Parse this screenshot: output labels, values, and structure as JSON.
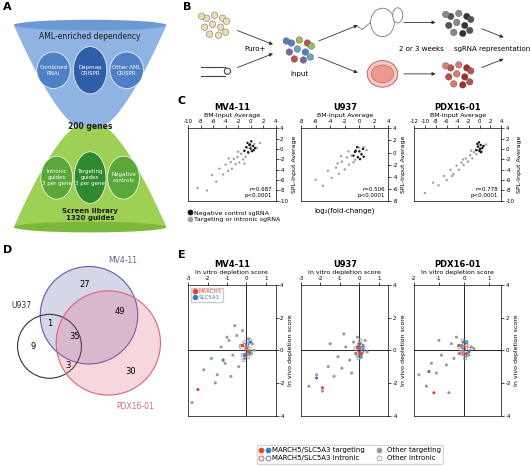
{
  "panel_labels": [
    "A",
    "B",
    "C",
    "D",
    "E"
  ],
  "diagram_a": {
    "header": "AML-enriched dependency",
    "sources": [
      "Combined\nRNAi",
      "Depmap\nCRISPR",
      "Other AML\nCRISPR"
    ],
    "gene_count": "200 genes",
    "guide_sets": [
      "Intronic\nguides\n3 per gene",
      "Targeting\nguides\n3 per gene",
      "Negative\ncontrols"
    ],
    "library": "Screen library\n1320 guides"
  },
  "diagram_b": {
    "selection": "Puro+",
    "input": "Input",
    "duration": "2 or 3 weeks",
    "readout": "sgRNA representation"
  },
  "panel_c_note": {
    "xlabel": "log₂(fold-change)"
  },
  "chart_data": [
    {
      "type": "scatter",
      "title": "MV4-11",
      "xlabel": "BM-Input Average",
      "ylabel": "SPL-Input Average",
      "xlim": [
        -10,
        4
      ],
      "ylim": [
        -10,
        4
      ],
      "xticks": [
        -10,
        -8,
        -6,
        -4,
        -2,
        0,
        2,
        4
      ],
      "yticks": [
        -10,
        -8,
        -6,
        -4,
        -2,
        0,
        2,
        4
      ],
      "annotation": "r=0.687\np<0.0001",
      "series": [
        {
          "name": "Negative control sgRNA",
          "color": "#111111",
          "marker": "circle",
          "x": [
            -1,
            -0.7,
            -0.4,
            -0.2,
            0,
            0.2,
            0.4,
            0.7,
            -0.5,
            0.1,
            0.5,
            -0.1
          ],
          "values": [
            -0.3,
            0.4,
            -0.6,
            0.8,
            0.1,
            -0.4,
            0.6,
            0.2,
            1.2,
            1.5,
            -0.2,
            0.9
          ]
        },
        {
          "name": "Targeting or intronic sgRNA",
          "color": "#a0a0a0",
          "marker": "circle",
          "x": [
            -8.5,
            -7,
            -6.2,
            -5.5,
            -5,
            -4.4,
            -4,
            -3.6,
            -3.2,
            -3,
            -2.7,
            -2.4,
            -2.1,
            -1.8,
            -1.5,
            -1.2,
            -1,
            -0.8,
            -0.5,
            -0.3,
            0,
            0.3,
            0.6,
            1,
            1.5,
            -2,
            -3.5,
            -1
          ],
          "values": [
            -7.5,
            -8,
            -5,
            -6.3,
            -3.8,
            -4.9,
            -3,
            -4.2,
            -2.5,
            -3.8,
            -1.9,
            -2.9,
            -1.5,
            -2.6,
            -0.9,
            -2,
            -0.4,
            -1.5,
            0.2,
            -0.8,
            0.5,
            -0.3,
            1,
            0.2,
            1.2,
            -0.5,
            -1.8,
            -2.8
          ]
        }
      ]
    },
    {
      "type": "scatter",
      "title": "U937",
      "xlabel": "BM-Input Average",
      "ylabel": "SPL-Input Average",
      "xlim": [
        -8,
        4
      ],
      "ylim": [
        -8,
        4
      ],
      "xticks": [
        -8,
        -6,
        -4,
        -2,
        0,
        2,
        4
      ],
      "yticks": [
        -8,
        -6,
        -4,
        -2,
        0,
        2,
        4
      ],
      "annotation": "r=0.506\np<0.0001",
      "series": [
        {
          "name": "Negative control sgRNA",
          "color": "#111111",
          "marker": "circle",
          "x": [
            -0.8,
            -0.5,
            -0.2,
            0,
            0.3,
            0.5,
            -0.3,
            0.1,
            0.6,
            -0.6
          ],
          "values": [
            -0.5,
            0.3,
            -0.8,
            0.2,
            -0.3,
            0.6,
            0.9,
            -1.1,
            -0.7,
            0.1
          ]
        },
        {
          "name": "Targeting or intronic sgRNA",
          "color": "#a0a0a0",
          "marker": "circle",
          "x": [
            -6,
            -5,
            -4.3,
            -3.8,
            -3.2,
            -2.8,
            -2.4,
            -2,
            -1.7,
            -1.4,
            -1.1,
            -0.8,
            -0.5,
            -0.2,
            0,
            0.3,
            0.6,
            1,
            -3,
            -1.5,
            -2.5,
            -0.6
          ],
          "values": [
            -4.5,
            -5.5,
            -3,
            -4.2,
            -2.5,
            -3.5,
            -1.5,
            -2.8,
            -0.8,
            -2,
            -0.5,
            -1.6,
            0.3,
            -0.7,
            0.8,
            -0.2,
            0.9,
            0.4,
            -1.8,
            0.2,
            -0.6,
            -1.2
          ]
        }
      ]
    },
    {
      "type": "scatter",
      "title": "PDX16-01",
      "xlabel": "BM-Input Average",
      "ylabel": "SPL-Input Average",
      "xlim": [
        -12,
        4
      ],
      "ylim": [
        -10,
        4
      ],
      "xticks": [
        -12,
        -10,
        -8,
        -6,
        -4,
        -2,
        0,
        2,
        4
      ],
      "yticks": [
        -10,
        -8,
        -6,
        -4,
        -2,
        0,
        2,
        4
      ],
      "annotation": "r=0.778\np<0.0001",
      "series": [
        {
          "name": "Negative control sgRNA",
          "color": "#111111",
          "marker": "circle",
          "x": [
            -0.6,
            -0.3,
            0,
            0.2,
            0.5,
            -0.1,
            0.3,
            0.7,
            -0.4,
            0.1
          ],
          "values": [
            -0.2,
            0.5,
            -0.4,
            0.8,
            0.2,
            1.3,
            -0.6,
            0.6,
            1,
            0
          ]
        },
        {
          "name": "Targeting or intronic sgRNA",
          "color": "#a0a0a0",
          "marker": "circle",
          "x": [
            -10,
            -8.5,
            -7.5,
            -6.5,
            -6,
            -5.3,
            -4.8,
            -4.2,
            -3.8,
            -3.3,
            -2.9,
            -2.5,
            -2.1,
            -1.7,
            -1.3,
            -1,
            -0.6,
            -0.3,
            0,
            0.4,
            0.8,
            1.2,
            -5,
            -3,
            -1.5
          ],
          "values": [
            -8.5,
            -6.5,
            -7,
            -5.2,
            -6,
            -4,
            -4.8,
            -3.2,
            -4,
            -2.6,
            -3.1,
            -1.8,
            -2.4,
            -1.2,
            -1.8,
            -0.6,
            -1,
            -0.2,
            0.3,
            -0.4,
            0.6,
            0.9,
            -5.2,
            -2,
            -0.3
          ]
        }
      ]
    },
    {
      "type": "scatter",
      "title": "MV4-11",
      "xlabel": "In vitro depletion score",
      "ylabel": "In vivo depletion score",
      "xlim": [
        -3,
        1.5
      ],
      "ylim": [
        -4,
        4
      ],
      "xticks": [
        -3,
        -2,
        -1,
        0,
        1
      ],
      "yticks": [
        -4,
        -2,
        0,
        2,
        4
      ],
      "axis_lines": {
        "x": 0,
        "y": 0
      },
      "legend": "upper left",
      "gene_key": [
        {
          "name": "MARCH5",
          "color": "#e2462f"
        },
        {
          "name": "SLC5A3",
          "color": "#3b78c2"
        }
      ],
      "series": [
        {
          "name": "MARCH5/SLC5A3 targeting",
          "marker": "circle",
          "colors": [
            "#e2462f",
            "#e2462f",
            "#e2462f",
            "#3b78c2",
            "#3b78c2",
            "#3b78c2"
          ],
          "x": [
            -2.5,
            -0.2,
            0.1,
            -1.2,
            -0.1,
            0.2
          ],
          "values": [
            -2.4,
            0.3,
            -0.1,
            -0.6,
            -0.3,
            0.5
          ]
        },
        {
          "name": "Other targeting",
          "color": "#9a9a9a",
          "marker": "circle",
          "x": [
            -2.2,
            -1.8,
            -1.5,
            -1.3,
            -1.1,
            -0.9,
            -0.7,
            -0.5,
            -0.4,
            -0.3,
            -0.2,
            -0.1,
            0,
            0.1,
            0.2,
            0.3,
            -1.6,
            -0.8,
            -0.6,
            0.4,
            -2.8,
            -1
          ],
          "values": [
            -1.2,
            -0.5,
            -1.5,
            0.2,
            -0.8,
            0.6,
            -0.3,
            0.9,
            -1,
            0.3,
            1.2,
            -0.5,
            0.1,
            0.7,
            -0.2,
            0.4,
            -2,
            -1.6,
            1.5,
            0,
            -3.2,
            0.8
          ]
        },
        {
          "name": "MARCH5/SLC5A3 intronic",
          "marker": "open_circle",
          "colors": [
            "#e2462f",
            "#e2462f",
            "#e2462f",
            "#3b78c2",
            "#3b78c2",
            "#3b78c2"
          ],
          "x": [
            0,
            0.1,
            -0.1,
            0.05,
            0.15,
            -0.05
          ],
          "values": [
            0.1,
            -0.2,
            0.3,
            0.4,
            -0.1,
            -0.3
          ]
        },
        {
          "name": "Other intronic",
          "color": "#9a9a9a",
          "marker": "open_circle",
          "x": [
            -0.3,
            -0.2,
            -0.1,
            0,
            0.05,
            0.1,
            0.15,
            0.2,
            -0.15,
            0.25
          ],
          "values": [
            0.2,
            -0.3,
            0.5,
            -0.1,
            0.3,
            -0.4,
            0.1,
            0.6,
            -0.6,
            -0.2
          ]
        }
      ]
    },
    {
      "type": "scatter",
      "title": "U937",
      "xlabel": "In vitro depletion score",
      "ylabel": "In vivo depletion score",
      "xlim": [
        -3,
        1.5
      ],
      "ylim": [
        -4,
        4
      ],
      "xticks": [
        -3,
        -2,
        -1,
        0,
        1
      ],
      "yticks": [
        -4,
        -2,
        0,
        2,
        4
      ],
      "axis_lines": {
        "x": 0,
        "y": 0
      },
      "series": [
        {
          "name": "MARCH5/SLC5A3 targeting",
          "marker": "circle",
          "colors": [
            "#e2462f",
            "#e2462f",
            "#e2462f",
            "#3b78c2",
            "#3b78c2",
            "#3b78c2"
          ],
          "x": [
            -1.9,
            -0.1,
            0.1,
            -2.2,
            0,
            0.2
          ],
          "values": [
            -2.3,
            0.2,
            -0.2,
            -1.7,
            0.4,
            0
          ]
        },
        {
          "name": "Other targeting",
          "color": "#9a9a9a",
          "marker": "circle",
          "x": [
            -2.6,
            -2.2,
            -1.9,
            -1.6,
            -1.3,
            -1.1,
            -0.9,
            -0.7,
            -0.5,
            -0.3,
            -0.2,
            -0.1,
            0,
            0.1,
            0.2,
            0.3,
            -1.5,
            -0.8,
            -0.4,
            0.4
          ],
          "values": [
            -2.2,
            -1.5,
            -2.5,
            -1,
            -1.6,
            -0.4,
            -1.1,
            0.2,
            -0.6,
            0.5,
            -0.2,
            0.8,
            0.1,
            -0.4,
            0.3,
            0.6,
            0.4,
            1,
            -1.4,
            -0.1
          ]
        },
        {
          "name": "MARCH5/SLC5A3 intronic",
          "marker": "open_circle",
          "colors": [
            "#e2462f",
            "#e2462f",
            "#e2462f",
            "#3b78c2",
            "#3b78c2",
            "#3b78c2"
          ],
          "x": [
            0,
            0.1,
            -0.1,
            0.05,
            -0.05,
            0.15
          ],
          "values": [
            0,
            0.3,
            -0.2,
            -0.4,
            0.2,
            0.1
          ]
        },
        {
          "name": "Other intronic",
          "color": "#9a9a9a",
          "marker": "open_circle",
          "x": [
            -0.2,
            -0.1,
            0,
            0.1,
            0.2,
            0.05,
            -0.05,
            0.15
          ],
          "values": [
            0.1,
            -0.3,
            0.4,
            -0.2,
            0.2,
            0.6,
            -0.5,
            -0.1
          ]
        }
      ]
    },
    {
      "type": "scatter",
      "title": "PDX16-01",
      "xlabel": "In vitro depletion score",
      "ylabel": "In vivo depletion score",
      "xlim": [
        -2,
        1.5
      ],
      "ylim": [
        -4,
        4
      ],
      "xticks": [
        -2,
        -1,
        0,
        1
      ],
      "yticks": [
        -4,
        -2,
        0,
        2,
        4
      ],
      "axis_lines": {
        "x": 0,
        "y": 0
      },
      "series": [
        {
          "name": "MARCH5/SLC5A3 targeting",
          "marker": "circle",
          "colors": [
            "#e2462f",
            "#e2462f",
            "#e2462f",
            "#3b78c2",
            "#3b78c2",
            "#3b78c2"
          ],
          "x": [
            -1.2,
            -0.2,
            0.1,
            -1.4,
            0,
            0.2
          ],
          "values": [
            -2.6,
            0.3,
            -0.2,
            -1.3,
            0.5,
            -0.1
          ]
        },
        {
          "name": "Other targeting",
          "color": "#9a9a9a",
          "marker": "circle",
          "x": [
            -1.8,
            -1.5,
            -1.3,
            -1.1,
            -0.9,
            -0.7,
            -0.5,
            -0.4,
            -0.3,
            -0.2,
            -0.1,
            0,
            0.1,
            0.2,
            0.3,
            -1,
            -0.6,
            0.4
          ],
          "values": [
            -1.5,
            -2.2,
            -0.8,
            -1.4,
            -0.3,
            -0.9,
            0.4,
            -0.5,
            0.8,
            -0.2,
            0.3,
            -0.1,
            0.5,
            -0.3,
            0.2,
            0.6,
            -2.6,
            0.1
          ]
        },
        {
          "name": "MARCH5/SLC5A3 intronic",
          "marker": "open_circle",
          "colors": [
            "#e2462f",
            "#e2462f",
            "#e2462f",
            "#3b78c2",
            "#3b78c2",
            "#3b78c2"
          ],
          "x": [
            0,
            0.1,
            -0.1,
            0.05,
            -0.05,
            0.1
          ],
          "values": [
            0.1,
            0.3,
            -0.2,
            -0.3,
            0.2,
            0.5
          ]
        },
        {
          "name": "Other intronic",
          "color": "#9a9a9a",
          "marker": "open_circle",
          "x": [
            -0.2,
            -0.1,
            0,
            0.1,
            0.2,
            0.05,
            -0.05
          ],
          "values": [
            0.2,
            -0.1,
            0.4,
            -0.3,
            0.1,
            -0.5,
            0.6
          ]
        }
      ]
    }
  ],
  "venn_d": {
    "sets": [
      {
        "name": "MV4-11",
        "color": "#5b5ea6"
      },
      {
        "name": "U937",
        "color": "#333333"
      },
      {
        "name": "PDX16-01",
        "color": "#e0607e"
      }
    ],
    "regions": [
      {
        "sets": [
          "MV4-11"
        ],
        "count": 27
      },
      {
        "sets": [
          "MV4-11",
          "PDX16-01"
        ],
        "count": 49
      },
      {
        "sets": [
          "PDX16-01"
        ],
        "count": 30
      },
      {
        "sets": [
          "MV4-11",
          "U937",
          "PDX16-01"
        ],
        "count": 35
      },
      {
        "sets": [
          "U937"
        ],
        "count": 9
      },
      {
        "sets": [
          "MV4-11",
          "U937"
        ],
        "count": 1
      },
      {
        "sets": [
          "U937",
          "PDX16-01"
        ],
        "count": 3
      }
    ]
  }
}
